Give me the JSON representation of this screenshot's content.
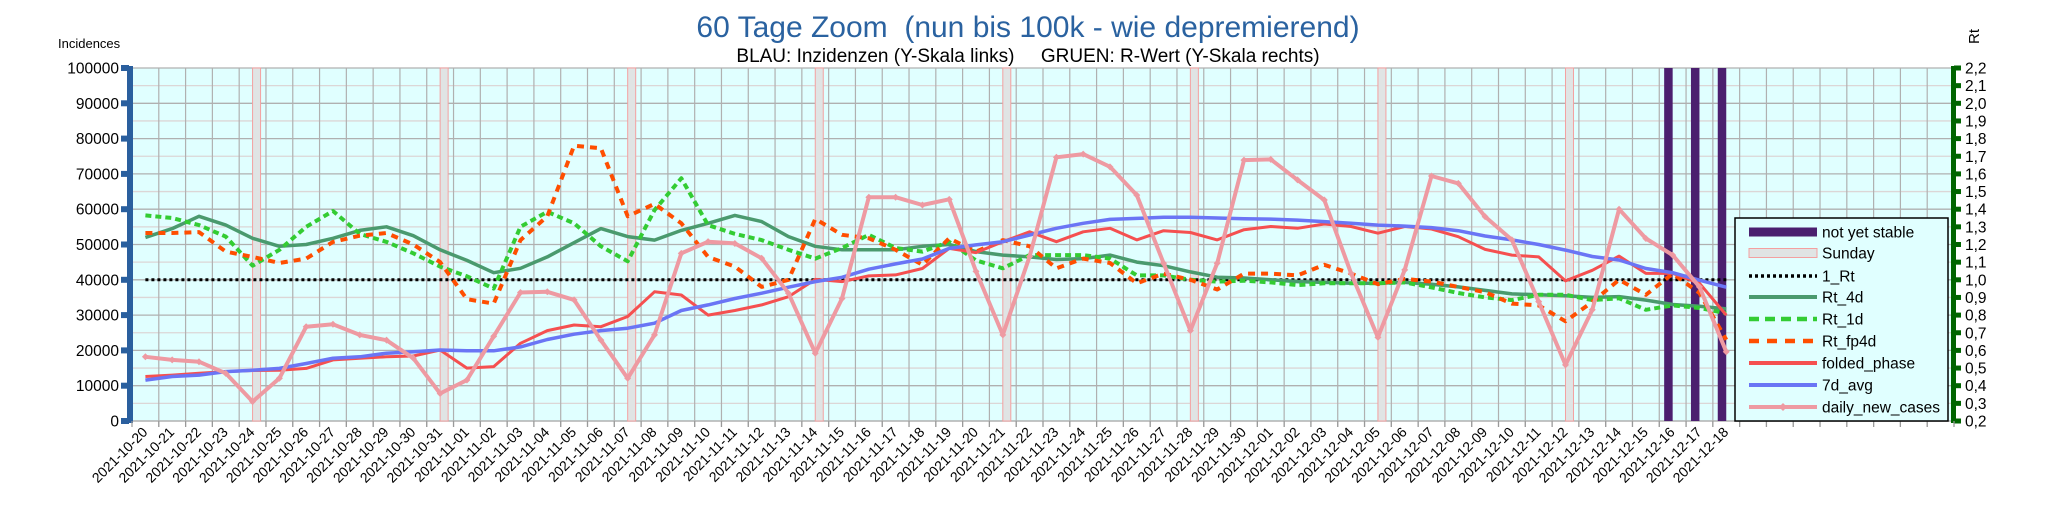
{
  "chart_data": {
    "type": "line",
    "title": "60 Tage Zoom  (nun bis 100k - wie depremierend)",
    "subtitle": "BLAU: Inzidenzen (Y-Skala links)     GRUEN: R-Wert (Y-Skala rechts)",
    "ylabel_left": "Incidences",
    "ylabel_right": "Rt",
    "ylim_left": [
      0,
      100000
    ],
    "ylim_right": [
      0.2,
      2.2
    ],
    "yticks_left": [
      "0",
      "10000",
      "20000",
      "30000",
      "40000",
      "50000",
      "60000",
      "70000",
      "80000",
      "90000",
      "100000"
    ],
    "yticks_right": [
      "0,2",
      "0,3",
      "0,4",
      "0,5",
      "0,6",
      "0,7",
      "0,8",
      "0,9",
      "1,0",
      "1,1",
      "1,2",
      "1,3",
      "1,4",
      "1,5",
      "1,6",
      "1,7",
      "1,8",
      "1,9",
      "2,0",
      "2,1",
      "2,2"
    ],
    "grid": true,
    "legend_position": "right",
    "categories": [
      "2021-10-20",
      "2021-10-21",
      "2021-10-22",
      "2021-10-23",
      "2021-10-24",
      "2021-10-25",
      "2021-10-26",
      "2021-10-27",
      "2021-10-28",
      "2021-10-29",
      "2021-10-30",
      "2021-10-31",
      "2021-11-01",
      "2021-11-02",
      "2021-11-03",
      "2021-11-04",
      "2021-11-05",
      "2021-11-06",
      "2021-11-07",
      "2021-11-08",
      "2021-11-09",
      "2021-11-10",
      "2021-11-11",
      "2021-11-12",
      "2021-11-13",
      "2021-11-14",
      "2021-11-15",
      "2021-11-16",
      "2021-11-17",
      "2021-11-18",
      "2021-11-19",
      "2021-11-20",
      "2021-11-21",
      "2021-11-22",
      "2021-11-23",
      "2021-11-24",
      "2021-11-25",
      "2021-11-26",
      "2021-11-27",
      "2021-11-28",
      "2021-11-29",
      "2021-11-30",
      "2021-12-01",
      "2021-12-02",
      "2021-12-03",
      "2021-12-04",
      "2021-12-05",
      "2021-12-06",
      "2021-12-07",
      "2021-12-08",
      "2021-12-09",
      "2021-12-10",
      "2021-12-11",
      "2021-12-12",
      "2021-12-13",
      "2021-12-14",
      "2021-12-15",
      "2021-12-16",
      "2021-12-17",
      "2021-12-18"
    ],
    "total_slots": 68,
    "sunday_indices": [
      4,
      11,
      18,
      25,
      32,
      39,
      46,
      53
    ],
    "not_yet_stable_indices": [
      57,
      58,
      59
    ],
    "series": [
      {
        "name": "not yet stable",
        "kind": "bar",
        "axis": "left",
        "color": "#4b1f6f"
      },
      {
        "name": "Sunday",
        "kind": "bar",
        "axis": "left",
        "color": "#e0e4e4",
        "edge": "#f4a0a0"
      },
      {
        "name": "1_Rt",
        "kind": "line",
        "axis": "right",
        "color": "#000000",
        "dash": "dot",
        "constant": 1.0
      },
      {
        "name": "Rt_4d",
        "kind": "line",
        "axis": "right",
        "color": "#4a9a6e",
        "dash": "solid",
        "values": [
          1.24,
          1.29,
          1.36,
          1.31,
          1.235,
          1.19,
          1.2,
          1.235,
          1.28,
          1.3,
          1.25,
          1.17,
          1.11,
          1.04,
          1.065,
          1.13,
          1.21,
          1.29,
          1.245,
          1.225,
          1.28,
          1.32,
          1.365,
          1.33,
          1.245,
          1.19,
          1.17,
          1.17,
          1.17,
          1.19,
          1.2,
          1.16,
          1.14,
          1.13,
          1.115,
          1.12,
          1.14,
          1.1,
          1.08,
          1.045,
          1.015,
          1.01,
          1.0,
          0.99,
          0.985,
          0.98,
          0.98,
          0.985,
          0.975,
          0.96,
          0.94,
          0.92,
          0.915,
          0.91,
          0.9,
          0.905,
          0.885,
          0.86,
          0.85,
          0.835
        ]
      },
      {
        "name": "Rt_1d",
        "kind": "line",
        "axis": "right",
        "color": "#33cc33",
        "dash": "dash",
        "values": [
          1.365,
          1.35,
          1.31,
          1.245,
          1.08,
          1.17,
          1.3,
          1.39,
          1.26,
          1.215,
          1.15,
          1.075,
          1.02,
          0.95,
          1.3,
          1.385,
          1.32,
          1.19,
          1.105,
          1.395,
          1.575,
          1.31,
          1.26,
          1.225,
          1.17,
          1.12,
          1.18,
          1.255,
          1.18,
          1.16,
          1.215,
          1.11,
          1.065,
          1.14,
          1.14,
          1.14,
          1.12,
          1.025,
          1.025,
          1.0,
          0.99,
          0.995,
          0.985,
          0.97,
          0.98,
          0.98,
          0.98,
          0.985,
          0.957,
          0.925,
          0.9,
          0.885,
          0.915,
          0.915,
          0.885,
          0.895,
          0.83,
          0.855,
          0.84,
          0.81
        ]
      },
      {
        "name": "Rt_fp4d",
        "kind": "line",
        "axis": "right",
        "color": "#ff4e00",
        "dash": "dash",
        "values": [
          1.265,
          1.265,
          1.27,
          1.16,
          1.13,
          1.095,
          1.12,
          1.215,
          1.25,
          1.265,
          1.2,
          1.1,
          0.89,
          0.865,
          1.225,
          1.36,
          1.76,
          1.745,
          1.36,
          1.43,
          1.32,
          1.13,
          1.075,
          0.96,
          1.0,
          1.345,
          1.255,
          1.235,
          1.17,
          1.085,
          1.235,
          1.16,
          1.225,
          1.19,
          1.065,
          1.12,
          1.095,
          0.98,
          1.035,
          1.0,
          0.945,
          1.035,
          1.035,
          1.025,
          1.085,
          1.035,
          0.975,
          1.005,
          0.99,
          0.96,
          0.93,
          0.865,
          0.855,
          0.765,
          0.875,
          1.0,
          0.915,
          1.035,
          0.925,
          0.66
        ]
      },
      {
        "name": "folded_phase",
        "kind": "line",
        "axis": "left",
        "color": "#f55050",
        "dash": "solid",
        "values": [
          12600,
          13000,
          13500,
          14000,
          14300,
          14400,
          14900,
          17300,
          17800,
          18200,
          18400,
          20100,
          15000,
          15400,
          22000,
          25600,
          27200,
          26700,
          29600,
          36600,
          35700,
          30000,
          31300,
          32900,
          35200,
          40100,
          39500,
          41100,
          41400,
          43200,
          48900,
          47700,
          50800,
          53600,
          50800,
          53600,
          54600,
          51300,
          53900,
          53400,
          51300,
          54200,
          55100,
          54600,
          55800,
          55100,
          53200,
          55100,
          54400,
          52200,
          48600,
          47000,
          46500,
          39700,
          42700,
          46700,
          41800,
          41800,
          39000,
          30000
        ]
      },
      {
        "name": "7d_avg",
        "kind": "line",
        "axis": "left",
        "color": "#6a75f5",
        "dash": "solid",
        "values": [
          11600,
          12600,
          13000,
          14000,
          14400,
          14900,
          16300,
          17800,
          18200,
          19200,
          19600,
          20100,
          19900,
          19900,
          21000,
          23100,
          24600,
          25600,
          26300,
          27700,
          31300,
          32900,
          34700,
          36200,
          37900,
          39500,
          40700,
          43000,
          44500,
          45900,
          48900,
          49900,
          50800,
          52700,
          54600,
          56000,
          57100,
          57400,
          57700,
          57700,
          57500,
          57300,
          57200,
          56900,
          56500,
          56000,
          55500,
          55200,
          54800,
          53900,
          52400,
          51300,
          50000,
          48400,
          46600,
          45600,
          43200,
          42000,
          39900,
          37900
        ]
      },
      {
        "name": "daily_new_cases",
        "kind": "line",
        "axis": "left",
        "color": "#ee9aa2",
        "dash": "solid",
        "marker": "diamond",
        "values": [
          18200,
          17300,
          16800,
          13500,
          5500,
          12100,
          26700,
          27400,
          24400,
          22900,
          17800,
          7800,
          11600,
          24000,
          36400,
          36600,
          34300,
          22900,
          12100,
          24400,
          47500,
          50800,
          50300,
          46100,
          36200,
          19200,
          34700,
          63400,
          63400,
          61200,
          62800,
          42400,
          24400,
          46600,
          74700,
          75600,
          72000,
          64000,
          44700,
          25600,
          44700,
          73900,
          74100,
          68300,
          62600,
          41800,
          23700,
          42800,
          69400,
          67300,
          57900,
          51300,
          33800,
          15900,
          31500,
          60000,
          51700,
          47000,
          38000,
          19600
        ]
      }
    ]
  },
  "colors": {
    "plot_bg": "#e0ffff",
    "title": "#2a62a0",
    "left_axis": "#2a5f9e",
    "right_axis": "#006400",
    "grid_major": "#b0b0b0",
    "grid_minor": "#dcd6d6"
  }
}
